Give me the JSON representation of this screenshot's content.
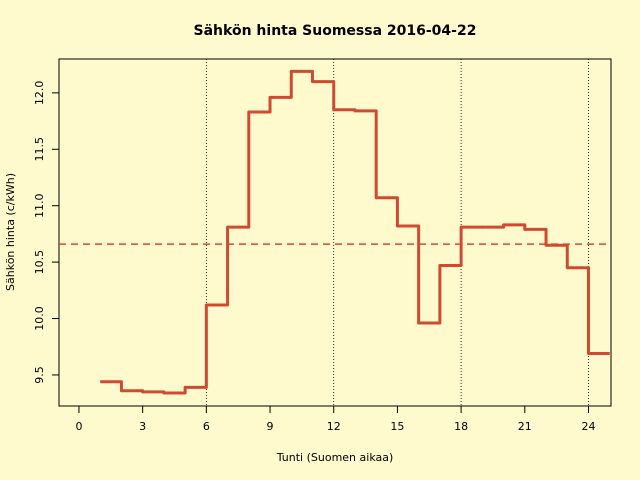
{
  "chart_data": {
    "type": "step",
    "title": "Sähkön hinta Suomessa 2016-04-22",
    "x_label": "Tunti (Suomen aikaa)",
    "y_label": "Sähkön hinta (c/kWh)",
    "x": [
      1,
      2,
      3,
      4,
      5,
      6,
      7,
      8,
      9,
      10,
      11,
      12,
      13,
      14,
      15,
      16,
      17,
      18,
      19,
      20,
      21,
      22,
      23,
      24
    ],
    "series": [
      {
        "color": "#d04a32",
        "values": [
          9.44,
          9.36,
          9.35,
          9.34,
          9.39,
          10.12,
          10.81,
          11.83,
          11.96,
          12.19,
          12.1,
          11.85,
          11.84,
          11.07,
          10.82,
          9.96,
          10.47,
          10.81,
          10.81,
          10.83,
          10.79,
          10.65,
          10.45,
          9.69
        ]
      }
    ],
    "mean": 10.66,
    "vlines": [
      6,
      12,
      18,
      24
    ],
    "xlim": [
      -0.94,
      25.06
    ],
    "ylim": [
      9.225,
      12.3
    ],
    "xticks": [
      0,
      3,
      6,
      9,
      12,
      15,
      18,
      21,
      24
    ],
    "yticks": [
      9.5,
      {
        "value": 10,
        "label": "10.0"
      },
      10.5,
      {
        "value": 11,
        "label": "11.0"
      },
      11.5,
      {
        "value": 12,
        "label": "12.0"
      }
    ]
  }
}
